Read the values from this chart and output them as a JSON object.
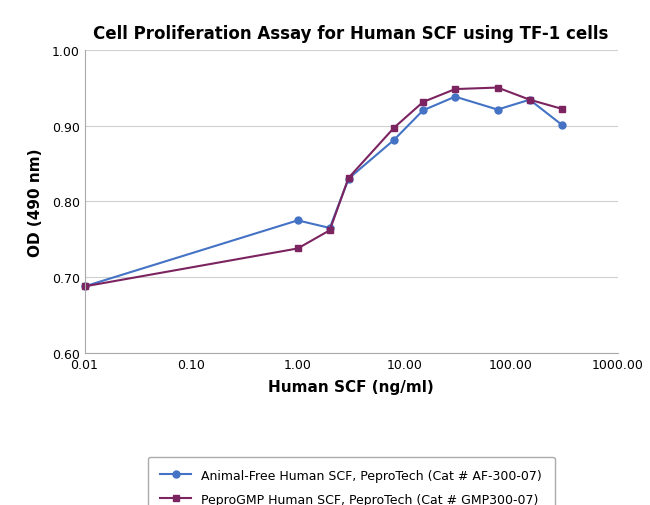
{
  "title": "Cell Proliferation Assay for Human SCF using TF-1 cells",
  "xlabel": "Human SCF (ng/ml)",
  "ylabel": "OD (490 nm)",
  "xlim": [
    0.01,
    1000.0
  ],
  "ylim": [
    0.6,
    1.0
  ],
  "yticks": [
    0.6,
    0.7,
    0.8,
    0.9,
    1.0
  ],
  "ytick_labels": [
    "0.60",
    "0.70",
    "0.80",
    "0.90",
    "1.00"
  ],
  "xticks": [
    0.01,
    0.1,
    1.0,
    10.0,
    100.0,
    1000.0
  ],
  "xtick_labels": [
    "0.01",
    "0.10",
    "1.00",
    "10.00",
    "100.00",
    "1000.00"
  ],
  "series": [
    {
      "label": "Animal-Free Human SCF, PeproTech (Cat # AF-300-07)",
      "x": [
        0.01,
        1.0,
        2.0,
        3.0,
        8.0,
        15.0,
        30.0,
        75.0,
        150.0,
        300.0
      ],
      "y": [
        0.688,
        0.775,
        0.765,
        0.83,
        0.881,
        0.92,
        0.938,
        0.921,
        0.934,
        0.901
      ],
      "color": "#4472C4",
      "marker": "o",
      "linewidth": 1.5,
      "markersize": 5
    },
    {
      "label": "PeproGMP Human SCF, PeproTech (Cat # GMP300-07)",
      "x": [
        0.01,
        1.0,
        2.0,
        3.0,
        8.0,
        15.0,
        30.0,
        75.0,
        150.0,
        300.0
      ],
      "y": [
        0.688,
        0.738,
        0.762,
        0.831,
        0.897,
        0.931,
        0.948,
        0.95,
        0.934,
        0.922
      ],
      "color": "#7B2460",
      "marker": "s",
      "linewidth": 1.5,
      "markersize": 5
    }
  ],
  "background_color": "#FFFFFF",
  "grid_color": "#D0D0D0",
  "title_fontsize": 12,
  "label_fontsize": 11,
  "tick_fontsize": 9,
  "legend_fontsize": 9
}
